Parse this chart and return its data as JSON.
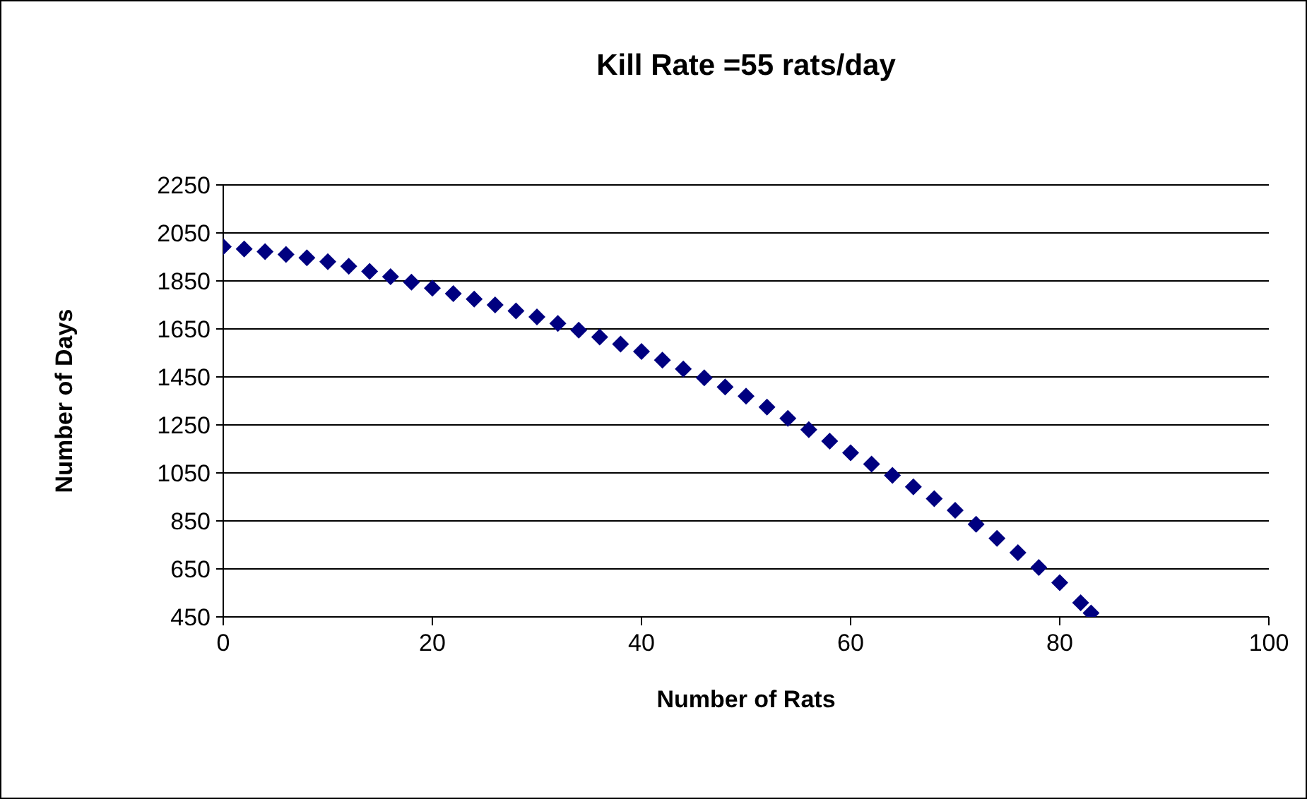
{
  "chart_data": {
    "type": "scatter",
    "title": "Kill Rate =55 rats/day",
    "xlabel": "Number of Rats",
    "ylabel": "Number of Days",
    "x": [
      0,
      2,
      4,
      6,
      8,
      10,
      12,
      14,
      16,
      18,
      20,
      22,
      24,
      26,
      28,
      30,
      32,
      34,
      36,
      38,
      40,
      42,
      44,
      46,
      48,
      50,
      52,
      54,
      56,
      58,
      60,
      62,
      64,
      66,
      68,
      70,
      72,
      74,
      76,
      78,
      80,
      82,
      83
    ],
    "series": [
      {
        "color": "#000080",
        "values": [
          1993,
          1983,
          1972,
          1960,
          1946,
          1930,
          1911,
          1890,
          1868,
          1845,
          1820,
          1797,
          1774,
          1750,
          1725,
          1700,
          1673,
          1645,
          1616,
          1587,
          1556,
          1520,
          1483,
          1446,
          1408,
          1370,
          1324,
          1277,
          1230,
          1182,
          1134,
          1087,
          1040,
          992,
          943,
          894,
          836,
          777,
          718,
          656,
          593,
          509,
          466
        ]
      }
    ],
    "xlim": [
      0,
      100
    ],
    "xticks": [
      0,
      20,
      40,
      60,
      80,
      100
    ],
    "ylim": [
      450,
      2250
    ],
    "yticks": [
      450,
      650,
      850,
      1050,
      1250,
      1450,
      1650,
      1850,
      2050,
      2250
    ],
    "grid": "y",
    "legend": false,
    "marker": "diamond"
  }
}
